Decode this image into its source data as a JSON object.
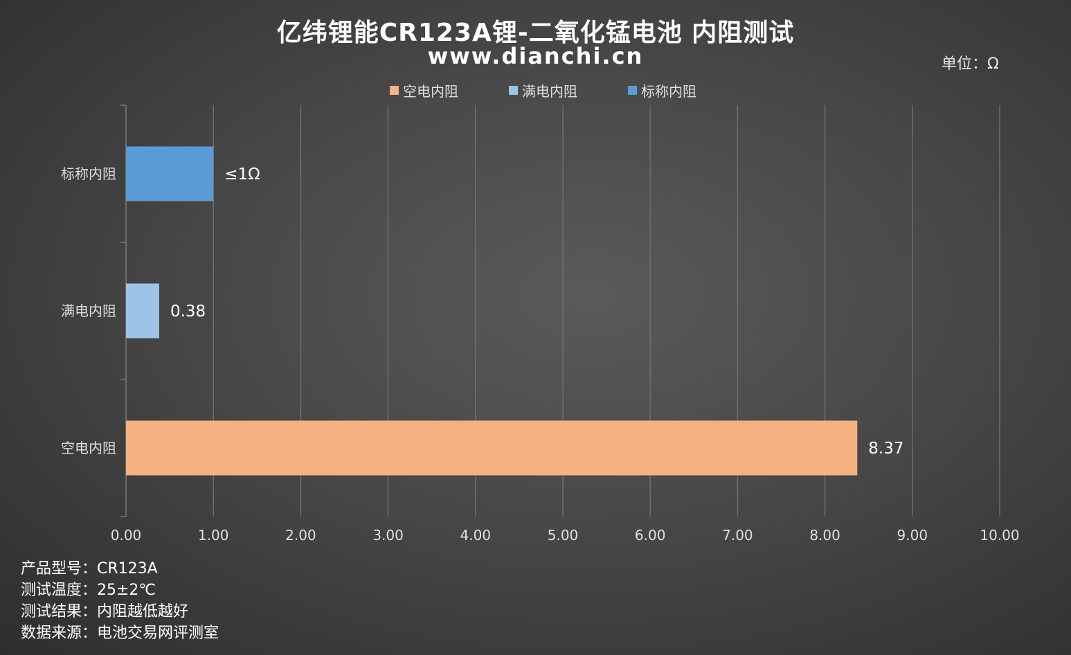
{
  "header": {
    "title": "亿纬锂能CR123A锂-二氧化锰电池 内阻测试",
    "subtitle": "www.dianchi.cn",
    "unit": "单位：Ω"
  },
  "notes": [
    "产品型号：CR123A",
    "测试温度：25±2℃",
    "测试结果：内阻越低越好",
    "数据来源：电池交易网评测室"
  ],
  "chart_data": {
    "type": "bar",
    "orientation": "horizontal",
    "title": "亿纬锂能CR123A锂-二氧化锰电池 内阻测试",
    "subtitle": "www.dianchi.cn",
    "unit": "单位：Ω",
    "categories": [
      "空电内阻",
      "满电内阻",
      "标称内阻"
    ],
    "values": [
      8.37,
      0.38,
      1.0
    ],
    "value_labels": [
      "8.37",
      "0.38",
      "≤1Ω"
    ],
    "colors": [
      "#F4B183",
      "#9DC3E6",
      "#5B9BD5"
    ],
    "legend": [
      "空电内阻",
      "满电内阻",
      "标称内阻"
    ],
    "legend_position": "top",
    "xlim": [
      0,
      10
    ],
    "x_ticks": [
      "0.00",
      "1.00",
      "2.00",
      "3.00",
      "4.00",
      "5.00",
      "6.00",
      "7.00",
      "8.00",
      "9.00",
      "10.00"
    ],
    "grid": true
  }
}
